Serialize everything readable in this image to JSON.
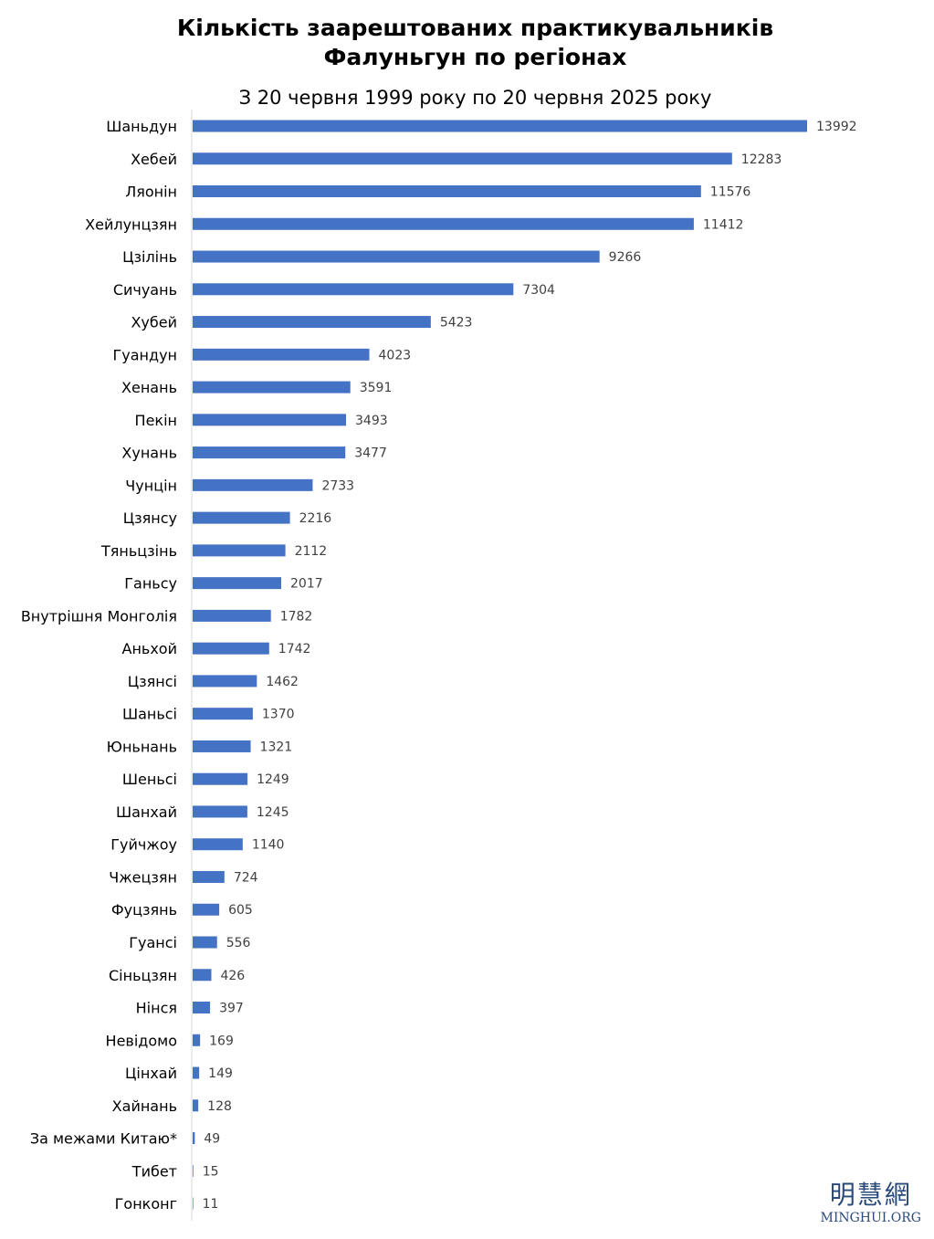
{
  "chart_data": {
    "type": "bar",
    "orientation": "horizontal",
    "title_lines": [
      "Кількість заарештованих практикувальників",
      "Фалуньгун по регіонах"
    ],
    "subtitle": "З 20 червня 1999 року по 20 червня 2025 року",
    "categories": [
      "Шаньдун",
      "Хебей",
      "Ляонін",
      "Хейлунцзян",
      "Цзілінь",
      "Сичуань",
      "Хубей",
      "Гуандун",
      "Хенань",
      "Пекін",
      "Хунань",
      "Чунцін",
      "Цзянсу",
      "Тяньцзінь",
      "Ганьсу",
      "Внутрішня Монголія",
      "Аньхой",
      "Цзянсі",
      "Шаньсі",
      "Юньнань",
      "Шеньсі",
      "Шанхай",
      "Гуйчжоу",
      "Чжецзян",
      "Фуцзянь",
      "Гуансі",
      "Сіньцзян",
      "Нінся",
      "Невідомо",
      "Цінхай",
      "Хайнань",
      "За межами Китаю*",
      "Тибет",
      "Гонконг"
    ],
    "values": [
      13992,
      12283,
      11576,
      11412,
      9266,
      7304,
      5423,
      4023,
      3591,
      3493,
      3477,
      2733,
      2216,
      2112,
      2017,
      1782,
      1742,
      1462,
      1370,
      1321,
      1249,
      1245,
      1140,
      724,
      605,
      556,
      426,
      397,
      169,
      149,
      128,
      49,
      15,
      11
    ],
    "bar_color": "#4472c4",
    "data_labels": true,
    "grid": false,
    "legend": "none"
  },
  "logo": {
    "chinese": "明慧網",
    "english": "MINGHUI.ORG"
  }
}
